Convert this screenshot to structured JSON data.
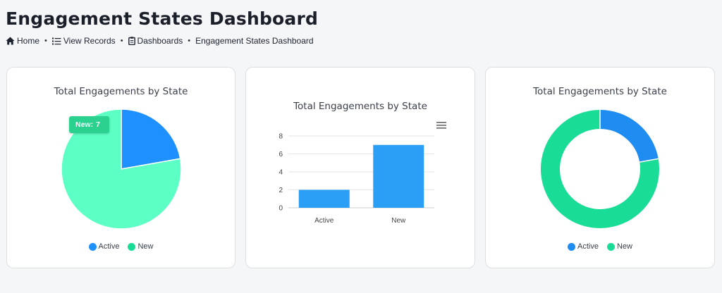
{
  "page": {
    "title": "Engagement States Dashboard"
  },
  "breadcrumb": {
    "home": "Home",
    "view_records": "View Records",
    "dashboards": "Dashboards",
    "current": "Engagement States Dashboard",
    "separator": "•"
  },
  "colors": {
    "active_pie": "#1e90ff",
    "new_pie": "#5cffc4",
    "active_donut": "#1e8cf0",
    "new_donut": "#19dc96",
    "bar": "#2b9ef5",
    "tooltip": "#2bd18f"
  },
  "tooltip": {
    "label": "New:",
    "value": "7"
  },
  "menu_icon": "hamburger-menu-icon",
  "chart_data": [
    {
      "type": "pie",
      "title": "Total Engagements by State",
      "labels": [
        "Active",
        "New"
      ],
      "values": [
        2,
        7
      ],
      "legend": "bottom"
    },
    {
      "type": "bar",
      "title": "Total Engagements by State",
      "categories": [
        "Active",
        "New"
      ],
      "values": [
        2,
        7
      ],
      "ylim": [
        0,
        8
      ],
      "yticks": [
        "0",
        "2",
        "4",
        "6",
        "8"
      ],
      "grid": true
    },
    {
      "type": "pie",
      "variant": "donut",
      "title": "Total Engagements by State",
      "labels": [
        "Active",
        "New"
      ],
      "values": [
        2,
        7
      ],
      "legend": "bottom"
    }
  ]
}
